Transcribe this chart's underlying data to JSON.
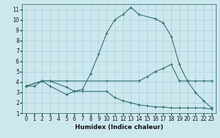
{
  "xlabel": "Humidex (Indice chaleur)",
  "background_color": "#cce8ee",
  "grid_color": "#aacdd6",
  "line_color": "#2e6b6b",
  "xlim": [
    -0.5,
    23.5
  ],
  "ylim": [
    1,
    11.5
  ],
  "xticks": [
    0,
    1,
    2,
    3,
    4,
    5,
    6,
    7,
    8,
    9,
    10,
    11,
    12,
    13,
    14,
    15,
    16,
    17,
    18,
    19,
    20,
    21,
    22,
    23
  ],
  "yticks": [
    1,
    2,
    3,
    4,
    5,
    6,
    7,
    8,
    9,
    10,
    11
  ],
  "curve1_x": [
    0,
    1,
    2,
    3,
    5,
    6,
    7,
    8,
    9,
    10,
    11,
    12,
    13,
    14,
    16,
    17,
    18,
    19,
    20,
    21,
    22,
    23
  ],
  "curve1_y": [
    3.6,
    3.6,
    4.1,
    4.1,
    3.5,
    3.1,
    3.3,
    4.8,
    6.7,
    8.7,
    10.0,
    10.5,
    11.2,
    10.5,
    10.1,
    9.7,
    8.4,
    5.7,
    4.1,
    3.0,
    2.2,
    1.5
  ],
  "curve2_x": [
    0,
    2,
    3,
    5,
    10,
    14,
    15,
    16,
    17,
    18,
    19,
    20,
    21,
    22,
    23
  ],
  "curve2_y": [
    3.6,
    4.1,
    4.1,
    4.1,
    4.1,
    4.1,
    4.5,
    5.0,
    5.3,
    5.7,
    4.1,
    4.1,
    4.1,
    4.1,
    4.1
  ],
  "curve3_x": [
    0,
    2,
    3,
    5,
    6,
    7,
    10,
    11,
    12,
    13,
    14,
    15,
    16,
    17,
    18,
    19,
    20,
    21,
    22,
    23
  ],
  "curve3_y": [
    3.6,
    4.1,
    3.6,
    2.8,
    3.1,
    3.1,
    3.1,
    2.5,
    2.2,
    2.0,
    1.8,
    1.7,
    1.6,
    1.6,
    1.5,
    1.5,
    1.5,
    1.5,
    1.5,
    1.4
  ]
}
